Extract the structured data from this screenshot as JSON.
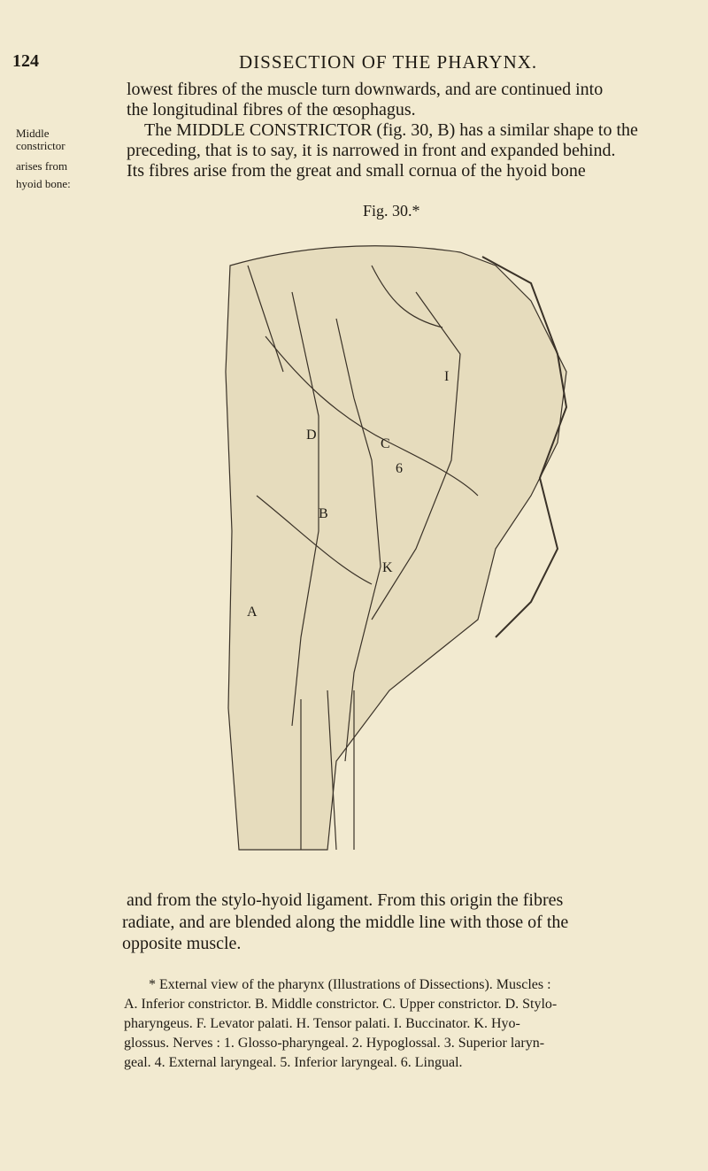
{
  "header": {
    "page_number": "124",
    "title": "DISSECTION OF THE PHARYNX."
  },
  "margin_note": [
    "Middle",
    "constrictor",
    "arises from",
    "hyoid bone:"
  ],
  "body_top": [
    "lowest fibres of the muscle turn downwards, and are continued into",
    "the longitudinal fibres of the œsophagus.",
    "The MIDDLE CONSTRICTOR (fig. 30, B) has a similar shape to the",
    "preceding, that is to say, it is narrowed in front and expanded behind.",
    "Its fibres arise from the great and small cornua of the hyoid bone"
  ],
  "figure": {
    "caption": "Fig. 30.*",
    "labels": [
      "D",
      "C",
      "I",
      "6",
      "B",
      "K",
      "A"
    ]
  },
  "body_bottom": [
    "and from the stylo-hyoid ligament.  From this origin the fibres",
    "radiate, and are blended along the middle line with those of the",
    "opposite muscle."
  ],
  "footnote": [
    "* External view of the pharynx (Illustrations of Dissections).  Muscles :",
    "A. Inferior constrictor.  B. Middle constrictor.  C. Upper constrictor.  D. Stylo-",
    "pharyngeus.  F. Levator palati.  H. Tensor palati.  I. Buccinator.  K. Hyo-",
    "glossus.  Nerves : 1. Glosso-pharyngeal.  2. Hypoglossal.  3. Superior laryn-",
    "geal.  4. External laryngeal.  5. Inferior laryngeal.  6. Lingual."
  ]
}
